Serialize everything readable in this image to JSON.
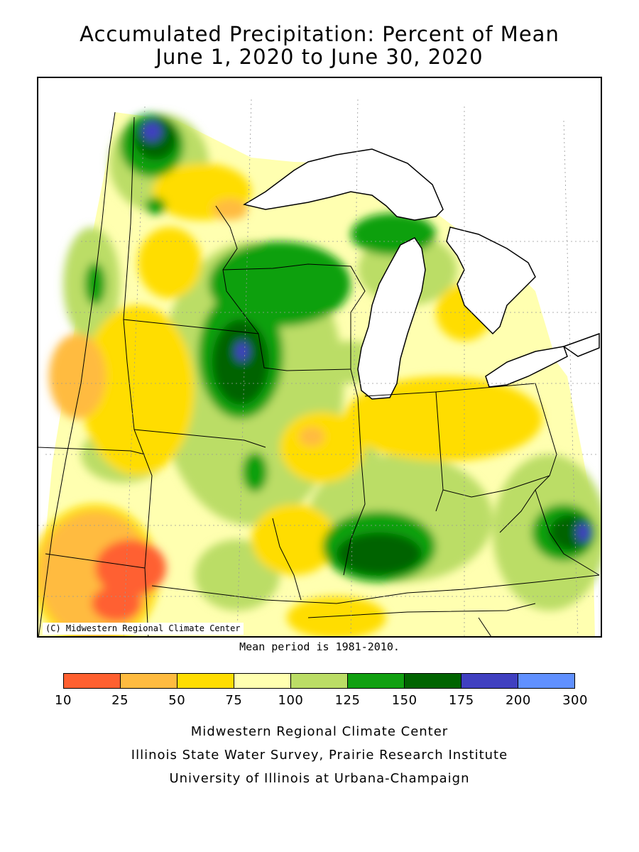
{
  "title": {
    "line1": "Accumulated Precipitation: Percent of Mean",
    "line2": "June 1, 2020 to June 30, 2020"
  },
  "map": {
    "copyright": "(C) Midwestern Regional Climate Center",
    "water_color": "#ffffff",
    "boundary_color": "#000000"
  },
  "mean_note": "Mean period is 1981-2010.",
  "legend": {
    "colors": [
      "#ff6030",
      "#ffbb40",
      "#ffdd00",
      "#ffffb0",
      "#bbdd66",
      "#11a011",
      "#006400",
      "#4040c0",
      "#6090ff"
    ],
    "ticks": [
      "10",
      "25",
      "50",
      "75",
      "100",
      "125",
      "150",
      "175",
      "200",
      "300"
    ]
  },
  "credits": {
    "line1": "Midwestern Regional Climate Center",
    "line2": "Illinois State Water Survey, Prairie Research Institute",
    "line3": "University of Illinois at Urbana-Champaign"
  }
}
